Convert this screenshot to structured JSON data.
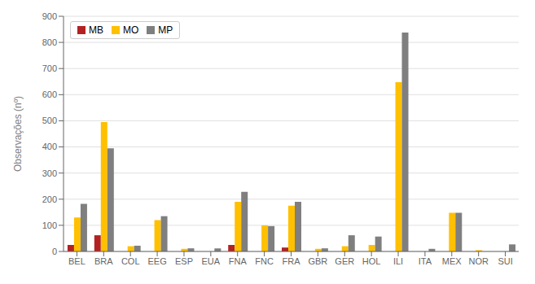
{
  "chart_data": {
    "type": "bar",
    "categories": [
      "BEL",
      "BRA",
      "COL",
      "EEG",
      "ESP",
      "EUA",
      "FNA",
      "FNC",
      "FRA",
      "GBR",
      "GER",
      "HOL",
      "ILI",
      "ITA",
      "MEX",
      "NOR",
      "SUI"
    ],
    "series": [
      {
        "name": "MB",
        "color": "#b22222",
        "values": [
          25,
          62,
          0,
          0,
          0,
          0,
          25,
          0,
          15,
          0,
          0,
          0,
          0,
          0,
          0,
          0,
          0
        ]
      },
      {
        "name": "MO",
        "color": "#ffc000",
        "values": [
          130,
          495,
          20,
          120,
          10,
          0,
          190,
          100,
          175,
          10,
          20,
          25,
          648,
          0,
          148,
          5,
          0
        ]
      },
      {
        "name": "MP",
        "color": "#7f7f7f",
        "values": [
          182,
          395,
          22,
          135,
          12,
          12,
          228,
          97,
          190,
          12,
          62,
          57,
          838,
          10,
          148,
          0,
          27
        ]
      }
    ],
    "ylabel": "Observações (nº)",
    "ylim": [
      0,
      900
    ],
    "yticks": [
      0,
      100,
      200,
      300,
      400,
      500,
      600,
      700,
      800,
      900
    ],
    "grid": true,
    "legend": "upper left"
  }
}
